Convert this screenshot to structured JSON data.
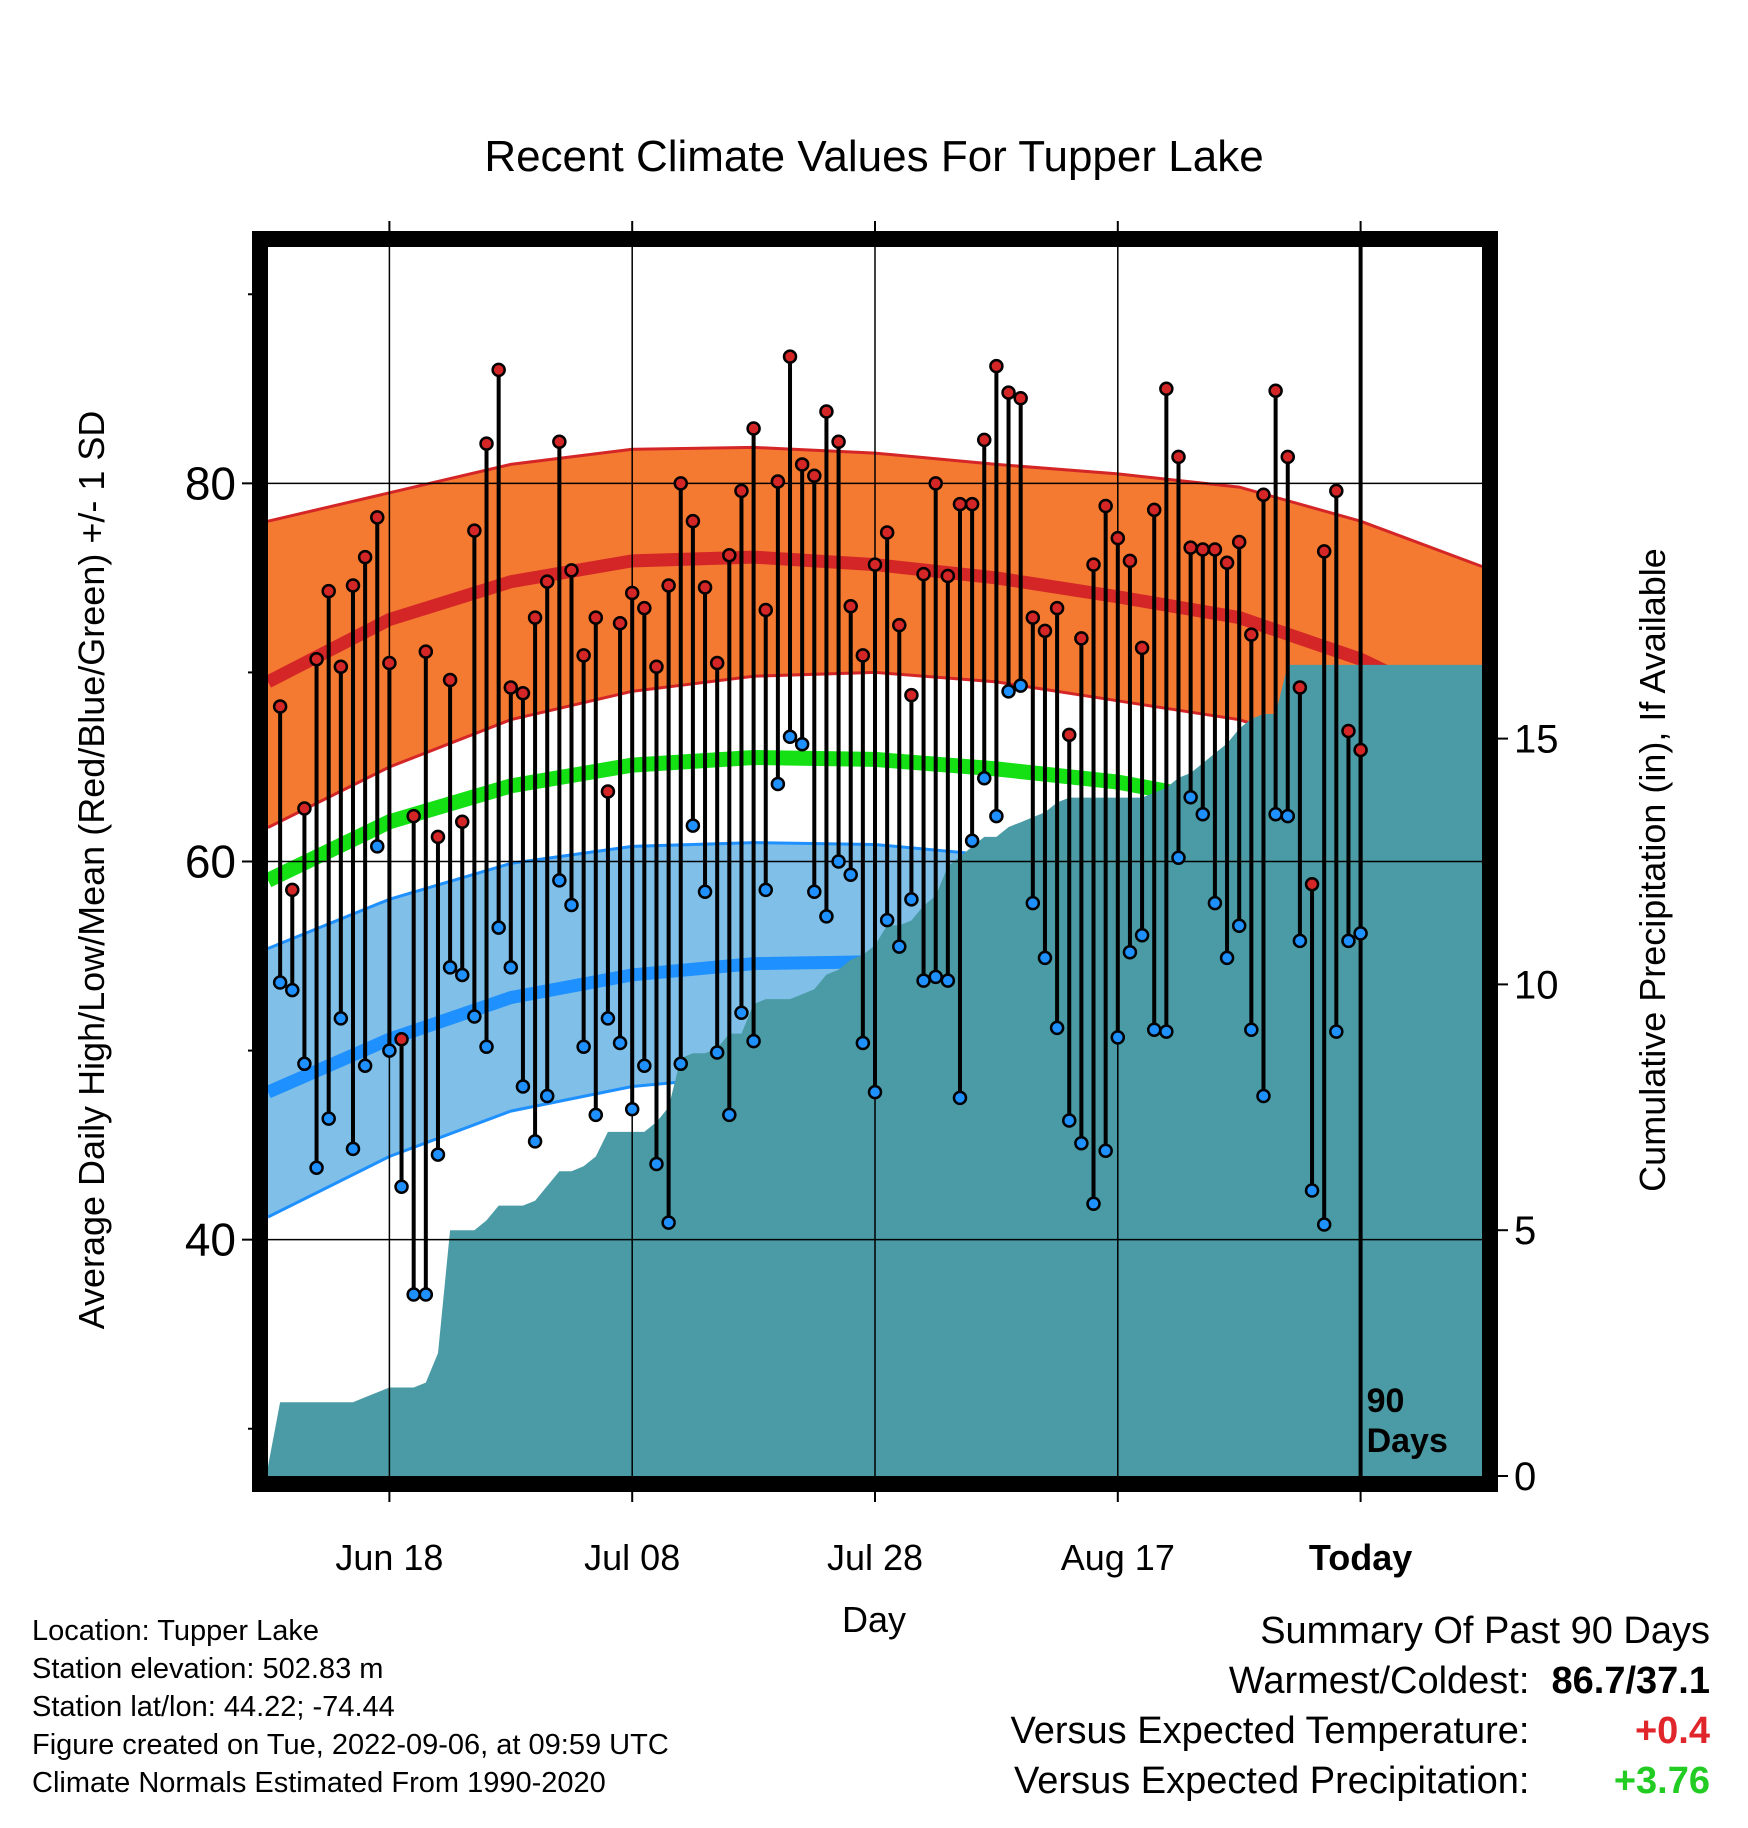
{
  "title": "Recent Climate Values For Tupper Lake",
  "info": {
    "location": "Location: Tupper Lake",
    "elevation": "Station elevation: 502.83 m",
    "latlon": "Station lat/lon: 44.22; -74.44",
    "created": "Figure created on Tue, 2022-09-06, at 09:59 UTC",
    "normals": "Climate Normals Estimated From 1990-2020"
  },
  "summary": {
    "heading": "Summary Of Past 90 Days",
    "warmest_label": "Warmest/Coldest:",
    "warmest_value": "86.7/37.1",
    "temp_label": "Versus Expected Temperature:",
    "temp_value": "+0.4",
    "precip_label": "Versus Expected Precipitation:",
    "precip_value": "+3.76"
  },
  "colors": {
    "high_band": "#f47a32",
    "high_line": "#d42626",
    "mean_line": "#14e014",
    "low_band": "#80c0e8",
    "low_line": "#1e90ff",
    "precip_fill": "#4a9ba5",
    "high_dot": "#d42626",
    "low_dot": "#1e90ff"
  },
  "chart_data": {
    "type": "line",
    "xlabel": "Day",
    "ylabel": "Average Daily High/Low/Mean (Red/Blue/Green) +/- 1 SD",
    "y2label": "Cumulative Precipitation (in), If Available",
    "ylim": [
      27.5,
      92.5
    ],
    "y2lim": [
      0,
      25
    ],
    "xlim": [
      0,
      100
    ],
    "yticks": [
      40,
      60,
      80
    ],
    "y2ticks": [
      0,
      5,
      10,
      15
    ],
    "xticks": [
      {
        "day": 10,
        "label": "Jun 18"
      },
      {
        "day": 30,
        "label": "Jul 08"
      },
      {
        "day": 50,
        "label": "Jul 28"
      },
      {
        "day": 70,
        "label": "Aug 17"
      },
      {
        "day": 90,
        "label": "Today"
      }
    ],
    "today_day": 90,
    "today_label": "90 Days",
    "highs": [
      68.2,
      58.5,
      62.8,
      70.7,
      74.3,
      70.3,
      74.6,
      76.1,
      78.2,
      70.5,
      50.6,
      62.4,
      71.1,
      61.3,
      69.6,
      62.1,
      77.5,
      82.1,
      86.0,
      69.2,
      68.9,
      72.9,
      74.8,
      82.2,
      75.4,
      70.9,
      72.9,
      63.7,
      72.6,
      74.2,
      73.4,
      70.3,
      74.6,
      80.0,
      78.0,
      74.5,
      70.5,
      76.2,
      79.6,
      82.9,
      73.3,
      80.1,
      86.7,
      81.0,
      80.4,
      83.8,
      82.2,
      73.5,
      70.9,
      75.7,
      77.4,
      72.5,
      68.8,
      75.2,
      80.0,
      75.1,
      78.9,
      78.9,
      82.3,
      86.2,
      84.8,
      84.5,
      72.9,
      72.2,
      73.4,
      66.7,
      71.8,
      75.7,
      78.8,
      77.1,
      75.9,
      71.3,
      78.6,
      85.0,
      81.4,
      76.6,
      76.5,
      76.5,
      75.8,
      76.9,
      72.0,
      79.4,
      84.9,
      81.4,
      69.2,
      58.8,
      76.4,
      79.6,
      66.9,
      65.9
    ],
    "lows": [
      53.6,
      53.2,
      49.3,
      43.8,
      46.4,
      51.7,
      44.8,
      49.2,
      60.8,
      50.0,
      42.8,
      37.1,
      37.1,
      44.5,
      54.4,
      54.0,
      51.8,
      50.2,
      56.5,
      54.4,
      48.1,
      45.2,
      47.6,
      59.0,
      57.7,
      50.2,
      46.6,
      51.7,
      50.4,
      46.9,
      49.2,
      44.0,
      40.9,
      49.3,
      61.9,
      58.4,
      49.9,
      46.6,
      52.0,
      50.5,
      58.5,
      64.1,
      66.6,
      66.2,
      58.4,
      57.1,
      60.0,
      59.3,
      50.4,
      47.8,
      56.9,
      55.5,
      58.0,
      53.7,
      53.9,
      53.7,
      47.5,
      61.1,
      64.4,
      62.4,
      69.0,
      69.3,
      57.8,
      54.9,
      51.2,
      46.3,
      45.1,
      41.9,
      44.7,
      50.7,
      55.2,
      56.1,
      51.1,
      51.0,
      60.2,
      63.4,
      62.5,
      57.8,
      54.9,
      56.6,
      51.1,
      47.6,
      62.5,
      62.4,
      55.8,
      42.6,
      40.8,
      51.0,
      55.8,
      56.2
    ],
    "normals": {
      "days": [
        0,
        10,
        20,
        30,
        40,
        50,
        60,
        70,
        80,
        90,
        100
      ],
      "mean": [
        59.0,
        62.1,
        64.0,
        65.1,
        65.5,
        65.4,
        64.9,
        64.2,
        63.0,
        60.3,
        56.1
      ],
      "high_mean": [
        69.5,
        72.8,
        74.8,
        75.9,
        76.1,
        75.7,
        75.0,
        74.0,
        72.9,
        70.7,
        67.6
      ],
      "high_upper": [
        78.0,
        79.5,
        81.0,
        81.8,
        81.9,
        81.6,
        81.0,
        80.5,
        79.8,
        78.0,
        75.6
      ],
      "high_lower": [
        61.8,
        65.0,
        67.5,
        69.0,
        69.8,
        70.0,
        69.5,
        68.5,
        67.5,
        65.5,
        60.8
      ],
      "low_mean": [
        47.8,
        50.6,
        52.8,
        54.0,
        54.6,
        54.7,
        54.2,
        53.5,
        51.9,
        49.0,
        44.9
      ],
      "low_upper": [
        55.4,
        58.0,
        59.9,
        60.8,
        61.0,
        60.9,
        60.3,
        59.4,
        58.1,
        56.2,
        53.5
      ],
      "low_lower": [
        41.2,
        44.4,
        46.8,
        48.1,
        48.7,
        48.8,
        48.5,
        47.5,
        45.7,
        42.8,
        38.6
      ]
    },
    "precip": {
      "days": [
        0,
        1,
        2,
        3,
        4,
        5,
        6,
        7,
        8,
        9,
        10,
        11,
        12,
        13,
        14,
        15,
        16,
        17,
        18,
        19,
        20,
        21,
        22,
        23,
        24,
        25,
        26,
        27,
        28,
        29,
        30,
        31,
        32,
        33,
        34,
        35,
        36,
        37,
        38,
        39,
        40,
        41,
        42,
        43,
        44,
        45,
        46,
        47,
        48,
        49,
        50,
        51,
        52,
        53,
        54,
        55,
        56,
        57,
        58,
        59,
        60,
        61,
        62,
        63,
        64,
        65,
        66,
        67,
        68,
        69,
        70,
        71,
        72,
        73,
        74,
        75,
        76,
        77,
        78,
        79,
        80,
        81,
        82,
        83,
        84,
        85,
        86,
        87,
        88,
        89,
        90,
        100
      ],
      "values": [
        0.2,
        1.5,
        1.5,
        1.5,
        1.5,
        1.5,
        1.5,
        1.5,
        1.6,
        1.7,
        1.8,
        1.8,
        1.8,
        1.9,
        2.5,
        5.0,
        5.0,
        5.0,
        5.2,
        5.5,
        5.5,
        5.5,
        5.6,
        5.9,
        6.2,
        6.2,
        6.3,
        6.5,
        7.0,
        7.0,
        7.0,
        7.0,
        7.2,
        7.5,
        8.5,
        8.6,
        8.6,
        8.7,
        9.0,
        9.0,
        9.6,
        9.7,
        9.7,
        9.7,
        9.8,
        9.9,
        10.2,
        10.3,
        10.5,
        10.6,
        10.8,
        11.2,
        11.2,
        11.3,
        11.6,
        11.8,
        12.4,
        12.6,
        12.8,
        13.0,
        13.0,
        13.2,
        13.3,
        13.4,
        13.5,
        13.7,
        13.8,
        13.8,
        13.8,
        13.8,
        13.8,
        13.8,
        13.8,
        13.9,
        14.0,
        14.2,
        14.3,
        14.5,
        14.7,
        14.9,
        15.2,
        15.4,
        15.5,
        15.5,
        16.5,
        16.5,
        16.5,
        16.5,
        16.5,
        16.5,
        16.5,
        16.5
      ]
    }
  }
}
